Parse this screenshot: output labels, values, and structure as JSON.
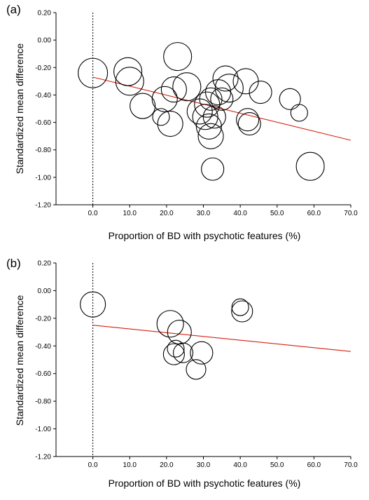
{
  "chart_data": [
    {
      "type": "scatter",
      "panel_label": "(a)",
      "xlabel": "Proportion of BD with psychotic features (%)",
      "ylabel": "Standardized mean difference",
      "xlim": [
        -10,
        70
      ],
      "ylim": [
        -1.2,
        0.2
      ],
      "x_ticks": [
        0,
        10,
        20,
        30,
        40,
        50,
        60,
        70
      ],
      "x_tick_labels": [
        "0.0",
        "10.0",
        "20.0",
        "30.0",
        "40.0",
        "50.0",
        "60.0",
        "70.0"
      ],
      "y_ticks": [
        0.2,
        0,
        -0.2,
        -0.4,
        -0.6,
        -0.8,
        -1.0,
        -1.2
      ],
      "y_tick_labels": [
        "0.20",
        "0.00",
        "-0.20",
        "-0.40",
        "-0.60",
        "-0.80",
        "-1.00",
        "-1.20"
      ],
      "reference_line_x": 0,
      "regression_line": {
        "x": [
          0,
          70
        ],
        "y": [
          -0.27,
          -0.73
        ],
        "color": "#d62010"
      },
      "points": [
        {
          "x": 0,
          "y": -0.24,
          "size": 1.05
        },
        {
          "x": 9.5,
          "y": -0.23,
          "size": 1.0
        },
        {
          "x": 10,
          "y": -0.3,
          "size": 1.0
        },
        {
          "x": 13.5,
          "y": -0.48,
          "size": 0.9
        },
        {
          "x": 18.5,
          "y": -0.56,
          "size": 0.6
        },
        {
          "x": 19.5,
          "y": -0.43,
          "size": 0.9
        },
        {
          "x": 21,
          "y": -0.61,
          "size": 0.9
        },
        {
          "x": 22,
          "y": -0.36,
          "size": 0.9
        },
        {
          "x": 23,
          "y": -0.12,
          "size": 1.0
        },
        {
          "x": 25.5,
          "y": -0.34,
          "size": 1.0
        },
        {
          "x": 29,
          "y": -0.52,
          "size": 0.9
        },
        {
          "x": 30.5,
          "y": -0.56,
          "size": 0.9
        },
        {
          "x": 31,
          "y": -0.47,
          "size": 0.9
        },
        {
          "x": 31.5,
          "y": -0.63,
          "size": 0.9
        },
        {
          "x": 32,
          "y": -0.43,
          "size": 0.8
        },
        {
          "x": 32,
          "y": -0.7,
          "size": 0.9
        },
        {
          "x": 32.5,
          "y": -0.94,
          "size": 0.8
        },
        {
          "x": 33,
          "y": -0.56,
          "size": 0.8
        },
        {
          "x": 34,
          "y": -0.38,
          "size": 0.9
        },
        {
          "x": 35,
          "y": -0.43,
          "size": 0.8
        },
        {
          "x": 36,
          "y": -0.28,
          "size": 0.9
        },
        {
          "x": 37,
          "y": -0.35,
          "size": 1.0
        },
        {
          "x": 41.5,
          "y": -0.3,
          "size": 0.9
        },
        {
          "x": 42,
          "y": -0.58,
          "size": 0.8
        },
        {
          "x": 42.5,
          "y": -0.61,
          "size": 0.8
        },
        {
          "x": 45.5,
          "y": -0.38,
          "size": 0.8
        },
        {
          "x": 53.5,
          "y": -0.43,
          "size": 0.75
        },
        {
          "x": 56,
          "y": -0.53,
          "size": 0.6
        },
        {
          "x": 59,
          "y": -0.92,
          "size": 1.0
        }
      ]
    },
    {
      "type": "scatter",
      "panel_label": "(b)",
      "xlabel": "Proportion of BD with psychotic features (%)",
      "ylabel": "Standardized mean difference",
      "xlim": [
        -10,
        70
      ],
      "ylim": [
        -1.2,
        0.2
      ],
      "x_ticks": [
        0,
        10,
        20,
        30,
        40,
        50,
        60,
        70
      ],
      "x_tick_labels": [
        "0.0",
        "10.0",
        "20.0",
        "30.0",
        "40.0",
        "50.0",
        "60.0",
        "70.0"
      ],
      "y_ticks": [
        0.2,
        0,
        -0.2,
        -0.4,
        -0.6,
        -0.8,
        -1.0,
        -1.2
      ],
      "y_tick_labels": [
        "0.20",
        "0.00",
        "-0.20",
        "-0.40",
        "-0.60",
        "-0.80",
        "-1.00",
        "-1.20"
      ],
      "reference_line_x": 0,
      "regression_line": {
        "x": [
          0,
          70
        ],
        "y": [
          -0.25,
          -0.44
        ],
        "color": "#d62010"
      },
      "points": [
        {
          "x": 0,
          "y": -0.1,
          "size": 0.9
        },
        {
          "x": 21,
          "y": -0.24,
          "size": 0.95
        },
        {
          "x": 23.5,
          "y": -0.3,
          "size": 0.85
        },
        {
          "x": 22.5,
          "y": -0.42,
          "size": 0.6
        },
        {
          "x": 22,
          "y": -0.46,
          "size": 0.75
        },
        {
          "x": 24.5,
          "y": -0.45,
          "size": 0.7
        },
        {
          "x": 28,
          "y": -0.57,
          "size": 0.7
        },
        {
          "x": 29.5,
          "y": -0.45,
          "size": 0.8
        },
        {
          "x": 40,
          "y": -0.12,
          "size": 0.6
        },
        {
          "x": 40.5,
          "y": -0.15,
          "size": 0.75
        }
      ]
    }
  ]
}
